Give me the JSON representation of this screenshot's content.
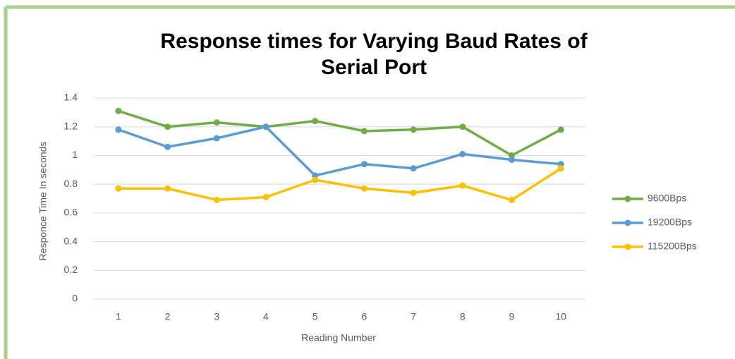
{
  "chart_data": {
    "type": "line",
    "title": [
      "Response times for Varying Baud Rates of",
      "Serial Port"
    ],
    "x_label": "Reading Number",
    "y_label": "Responce Time In seconds",
    "categories": [
      "1",
      "2",
      "3",
      "4",
      "5",
      "6",
      "7",
      "8",
      "9",
      "10"
    ],
    "series": [
      {
        "name": "9600Bps",
        "color": "#70ad47",
        "values": [
          1.31,
          1.2,
          1.23,
          1.2,
          1.24,
          1.17,
          1.18,
          1.2,
          1.0,
          1.18
        ]
      },
      {
        "name": "19200Bps",
        "color": "#5b9bd5",
        "values": [
          1.18,
          1.06,
          1.12,
          1.2,
          0.86,
          0.94,
          0.91,
          1.01,
          0.97,
          0.94
        ]
      },
      {
        "name": "115200Bps",
        "color": "#ffc000",
        "values": [
          0.77,
          0.77,
          0.69,
          0.71,
          0.83,
          0.77,
          0.74,
          0.79,
          0.69,
          0.91
        ]
      }
    ],
    "ylim": [
      0,
      1.4
    ],
    "yticks": [
      0,
      0.2,
      0.4,
      0.6,
      0.8,
      1,
      1.2,
      1.4
    ],
    "grid": true,
    "legend": "right"
  }
}
